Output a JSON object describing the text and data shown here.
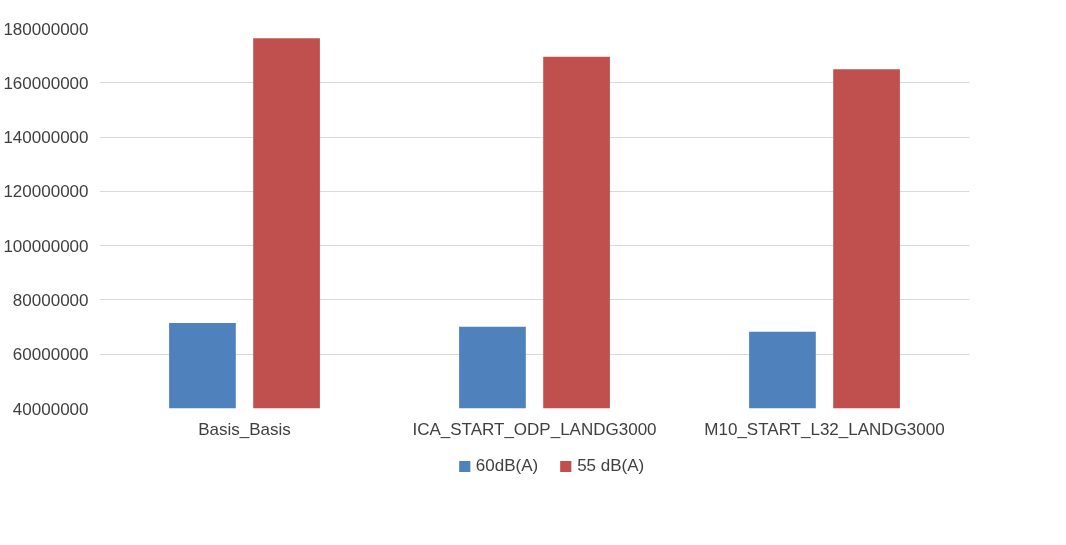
{
  "chart_data": {
    "type": "bar",
    "categories": [
      "Basis_Basis",
      "ICA_START_ODP_LANDG3000",
      "M10_START_L32_LANDG3000"
    ],
    "series": [
      {
        "name": "60dB(A)",
        "color": "#4f81bd",
        "values": [
          71500000,
          70100000,
          68300000
        ]
      },
      {
        "name": "55 dB(A)",
        "color": "#c0504d",
        "values": [
          176400000,
          169600000,
          165000000
        ]
      }
    ],
    "ylim": [
      40000000,
      180000000
    ],
    "yticks": [
      40000000,
      60000000,
      80000000,
      100000000,
      120000000,
      140000000,
      160000000,
      180000000
    ],
    "grid": "y",
    "legend": "bottom"
  }
}
